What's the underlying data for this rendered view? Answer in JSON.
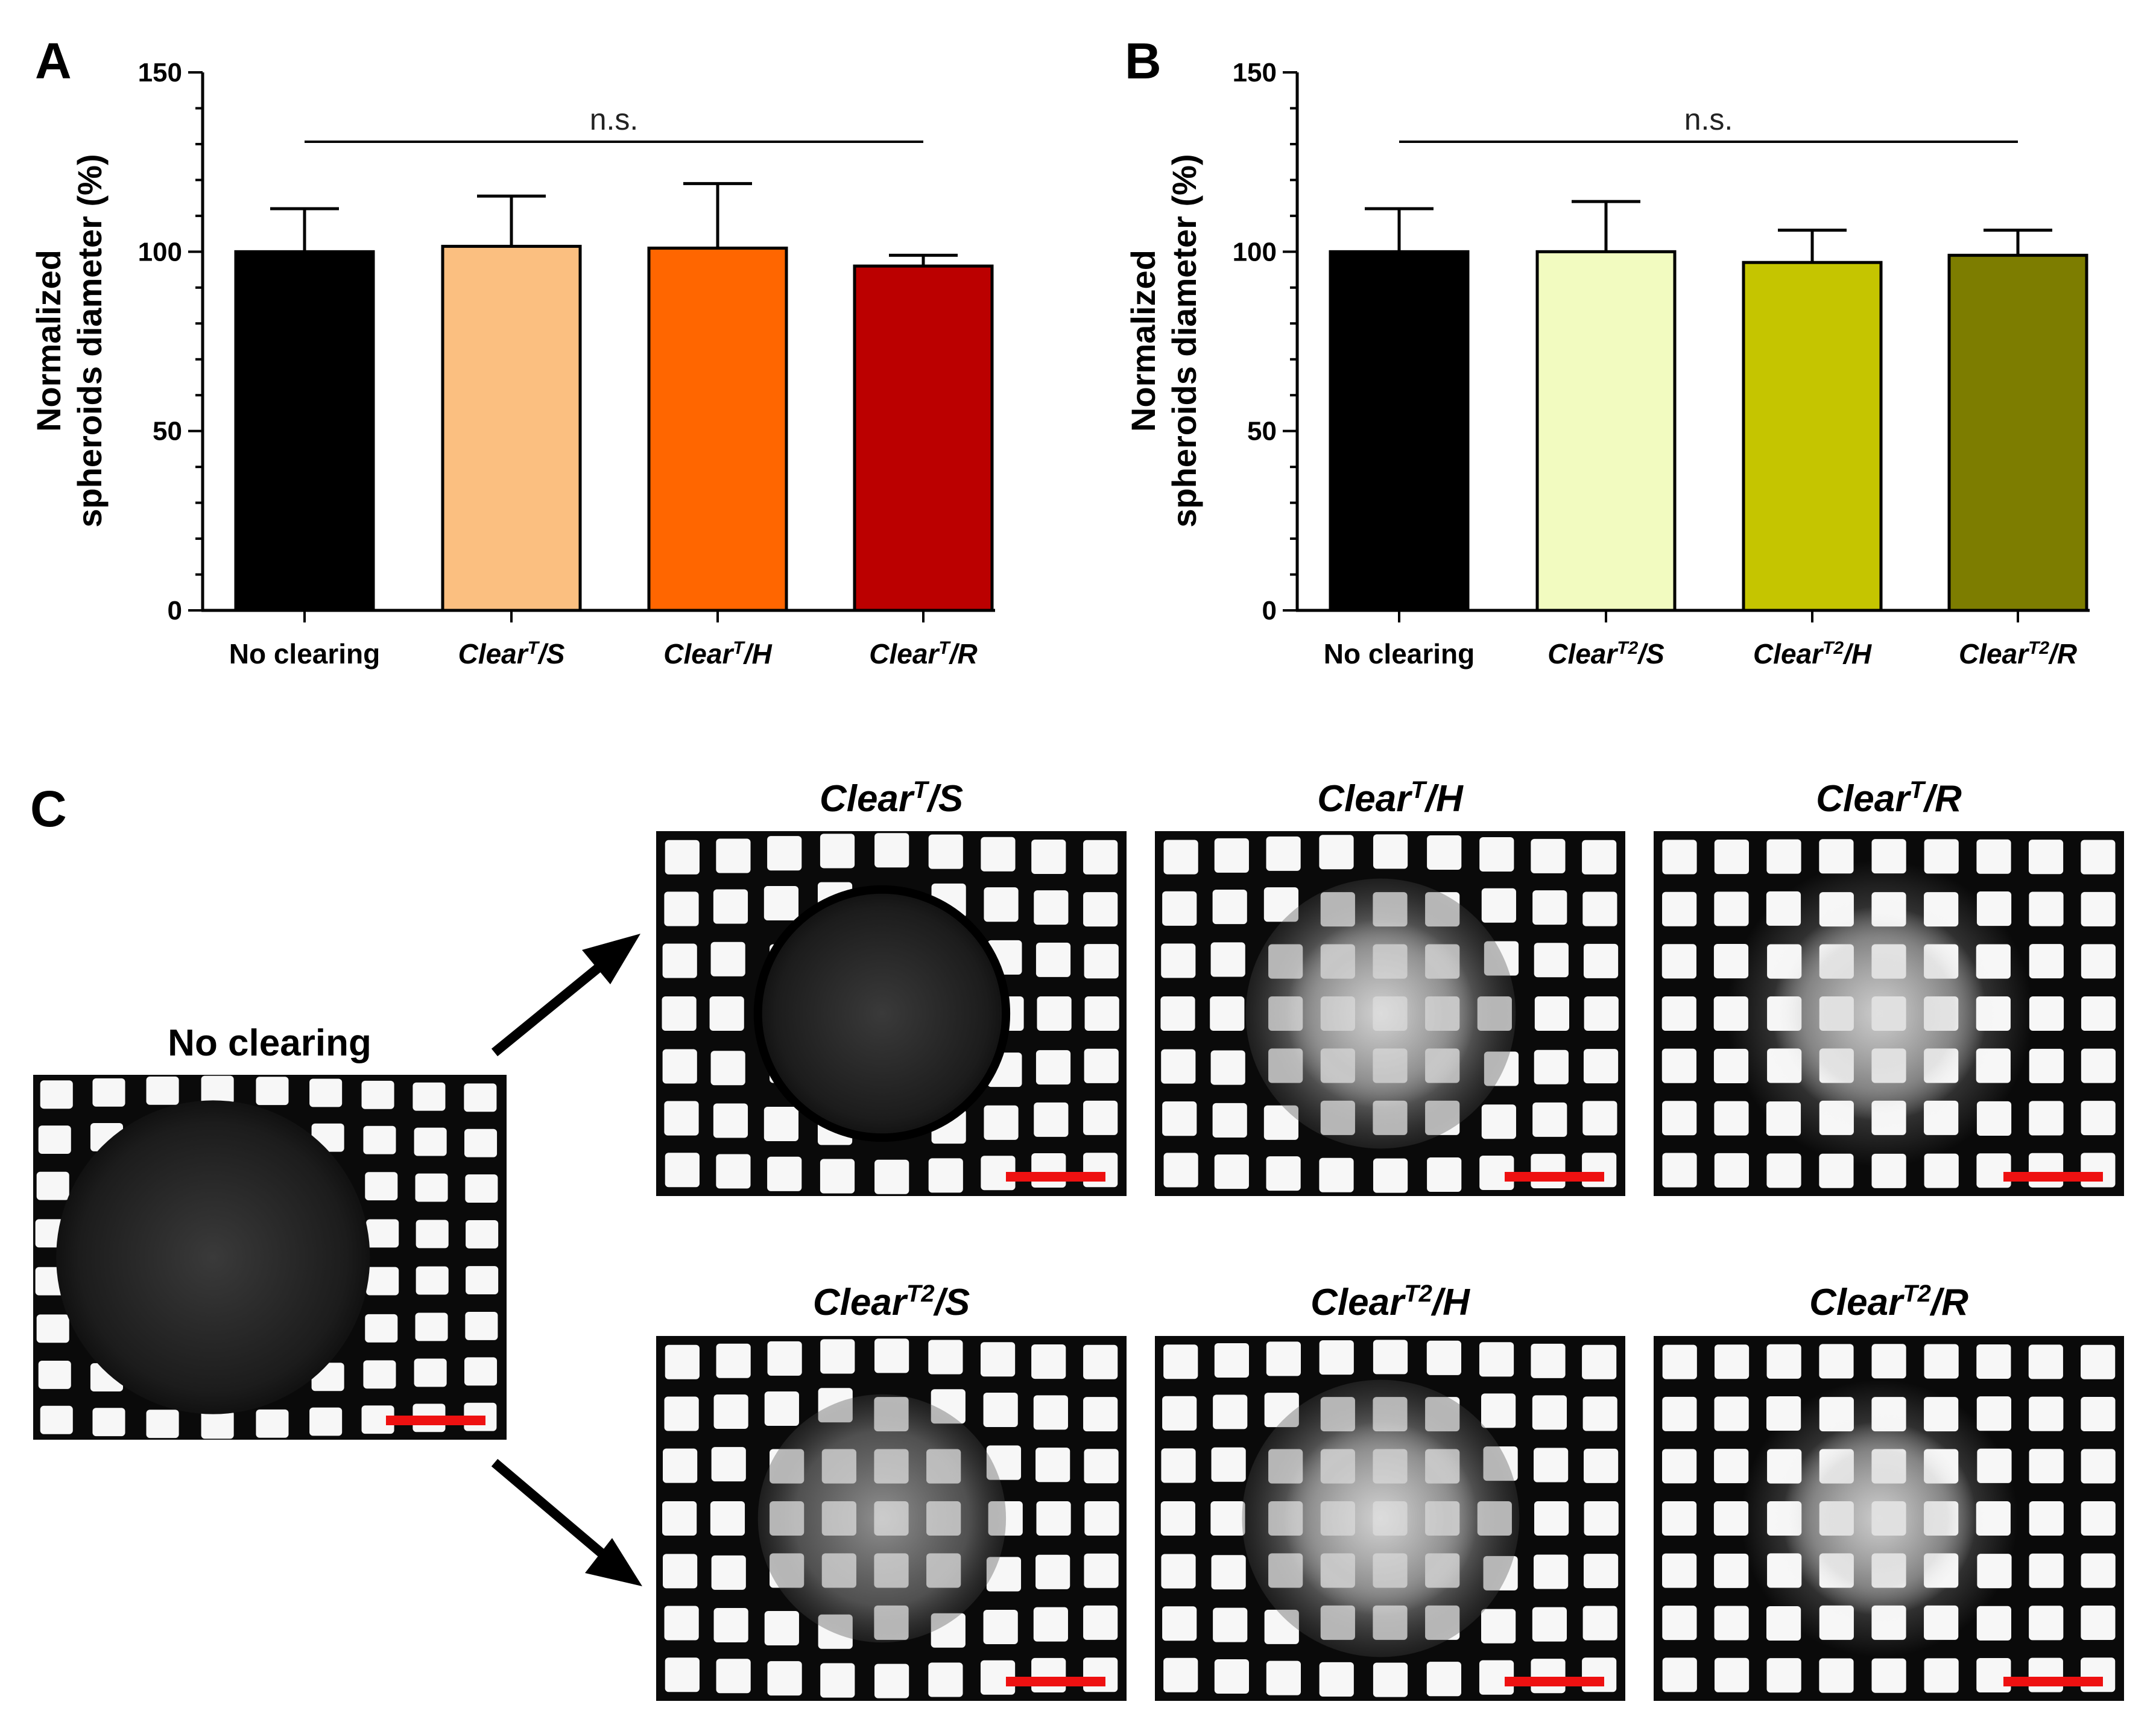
{
  "chart_data": [
    {
      "panel": "A",
      "type": "bar",
      "ylabel_line1": "Normalized",
      "ylabel_line2": "spheroids diameter (%)",
      "ylim": [
        0,
        150
      ],
      "yticks": [
        "0",
        "50",
        "100",
        "150"
      ],
      "significance": "n.s.",
      "categories": [
        {
          "prefix": "No clearing",
          "sup": "",
          "suffix": "",
          "italic": false
        },
        {
          "prefix": "Clear",
          "sup": "T",
          "suffix": "/S",
          "italic": true
        },
        {
          "prefix": "Clear",
          "sup": "T",
          "suffix": "/H",
          "italic": true
        },
        {
          "prefix": "Clear",
          "sup": "T",
          "suffix": "/R",
          "italic": true
        }
      ],
      "values": [
        100,
        101.5,
        101,
        96
      ],
      "errors": [
        12,
        14,
        18,
        3
      ],
      "colors": [
        "#000000",
        "#FBBF80",
        "#FF6600",
        "#BB0000"
      ]
    },
    {
      "panel": "B",
      "type": "bar",
      "ylabel_line1": "Normalized",
      "ylabel_line2": "spheroids diameter (%)",
      "ylim": [
        0,
        150
      ],
      "yticks": [
        "0",
        "50",
        "100",
        "150"
      ],
      "significance": "n.s.",
      "categories": [
        {
          "prefix": "No clearing",
          "sup": "",
          "suffix": "",
          "italic": false
        },
        {
          "prefix": "Clear",
          "sup": "T2",
          "suffix": "/S",
          "italic": true
        },
        {
          "prefix": "Clear",
          "sup": "T2",
          "suffix": "/H",
          "italic": true
        },
        {
          "prefix": "Clear",
          "sup": "T2",
          "suffix": "/R",
          "italic": true
        }
      ],
      "values": [
        100,
        100,
        97,
        99
      ],
      "errors": [
        12,
        14,
        9,
        7
      ],
      "colors": [
        "#000000",
        "#F2FBC0",
        "#C5C500",
        "#7D7D00"
      ]
    }
  ],
  "panel_c": {
    "letter": "C",
    "reference": {
      "prefix": "No clearing",
      "sup": "",
      "suffix": "",
      "italic": false
    },
    "images": [
      {
        "prefix": "Clear",
        "sup": "T",
        "suffix": "/S",
        "italic": true
      },
      {
        "prefix": "Clear",
        "sup": "T",
        "suffix": "/H",
        "italic": true
      },
      {
        "prefix": "Clear",
        "sup": "T",
        "suffix": "/R",
        "italic": true
      },
      {
        "prefix": "Clear",
        "sup": "T2",
        "suffix": "/S",
        "italic": true
      },
      {
        "prefix": "Clear",
        "sup": "T2",
        "suffix": "/H",
        "italic": true
      },
      {
        "prefix": "Clear",
        "sup": "T2",
        "suffix": "/R",
        "italic": true
      }
    ],
    "scale_bar_color": "#EE1111"
  }
}
